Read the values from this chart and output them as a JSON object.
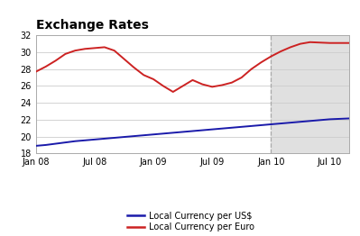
{
  "title": "Exchange Rates",
  "ylim": [
    18,
    32
  ],
  "yticks": [
    18,
    20,
    22,
    24,
    26,
    28,
    30,
    32
  ],
  "background_color": "#ffffff",
  "forecast_shade_color": "#e0e0e0",
  "forecast_start_month": 24,
  "dashed_line_color": "#aaaaaa",
  "grid_color": "#cccccc",
  "usd_color": "#1a1aaa",
  "euro_color": "#cc2222",
  "legend_labels": [
    "Local Currency per US$",
    "Local Currency per Euro"
  ],
  "title_fontsize": 10,
  "tick_fontsize": 7,
  "usd_data": [
    18.9,
    19.0,
    19.15,
    19.3,
    19.45,
    19.55,
    19.65,
    19.75,
    19.85,
    19.95,
    20.05,
    20.15,
    20.25,
    20.35,
    20.45,
    20.55,
    20.65,
    20.75,
    20.85,
    20.95,
    21.05,
    21.15,
    21.25,
    21.35,
    21.45,
    21.55,
    21.65,
    21.75,
    21.85,
    21.95,
    22.05,
    22.1,
    22.15
  ],
  "euro_data": [
    27.7,
    28.3,
    29.0,
    29.8,
    30.2,
    30.4,
    30.5,
    30.6,
    30.2,
    29.2,
    28.2,
    27.3,
    26.8,
    26.0,
    25.3,
    26.0,
    26.7,
    26.2,
    25.9,
    26.1,
    26.4,
    27.0,
    28.0,
    28.8,
    29.5,
    30.1,
    30.6,
    31.0,
    31.2,
    31.15,
    31.1,
    31.1,
    31.1
  ],
  "xtick_positions": [
    0,
    6,
    12,
    18,
    24,
    30
  ],
  "xtick_labels": [
    "Jan 08",
    "Jul 08",
    "Jan 09",
    "Jul 09",
    "Jan 10",
    "Jul 10"
  ]
}
